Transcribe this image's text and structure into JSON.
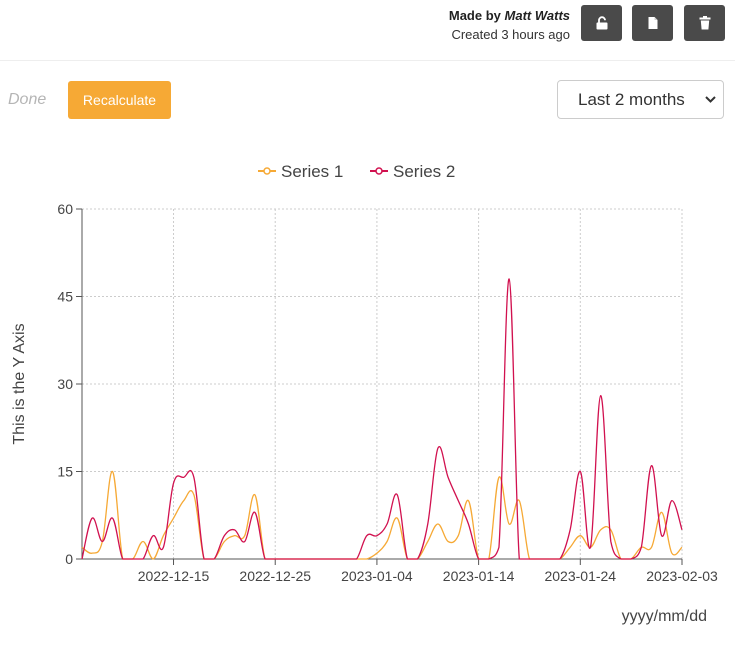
{
  "header": {
    "made_by_label": "Made by",
    "author_name": "Matt Watts",
    "created_text": "Created 3 hours ago",
    "buttons": [
      {
        "name": "unlock-button",
        "icon": "unlock-icon"
      },
      {
        "name": "copy-button",
        "icon": "copy-icon"
      },
      {
        "name": "delete-button",
        "icon": "trash-icon"
      }
    ]
  },
  "toolbar": {
    "status_text": "Done",
    "recalculate_label": "Recalculate",
    "range_selected": "Last 2 months"
  },
  "colors": {
    "series1": "#f6a935",
    "series2": "#d1114f",
    "recalculate_bg": "#f6a935",
    "icon_button_bg": "#4a4a4a"
  },
  "chart_data": {
    "type": "line",
    "ylabel": "This is the Y Axis",
    "xlabel": "yyyy/mm/dd",
    "ylim": [
      0,
      60
    ],
    "yticks": [
      0,
      15,
      30,
      45,
      60
    ],
    "xlim": [
      "2022-12-06",
      "2023-02-03"
    ],
    "xticks": [
      "2022-12-15",
      "2022-12-25",
      "2023-01-04",
      "2023-01-14",
      "2023-01-24",
      "2023-02-03"
    ],
    "grid": true,
    "legend_position": "top",
    "series": [
      {
        "name": "Series 1",
        "color": "#f6a935",
        "points": [
          [
            "2022-12-06",
            2
          ],
          [
            "2022-12-07",
            1
          ],
          [
            "2022-12-08",
            3
          ],
          [
            "2022-12-09",
            15
          ],
          [
            "2022-12-10",
            0
          ],
          [
            "2022-12-11",
            0
          ],
          [
            "2022-12-12",
            3
          ],
          [
            "2022-12-13",
            0
          ],
          [
            "2022-12-14",
            4
          ],
          [
            "2022-12-15",
            7
          ],
          [
            "2022-12-16",
            10
          ],
          [
            "2022-12-17",
            11
          ],
          [
            "2022-12-18",
            0
          ],
          [
            "2022-12-19",
            0
          ],
          [
            "2022-12-20",
            3
          ],
          [
            "2022-12-21",
            4
          ],
          [
            "2022-12-22",
            4
          ],
          [
            "2022-12-23",
            11
          ],
          [
            "2022-12-24",
            0
          ],
          [
            "2022-12-25",
            0
          ],
          [
            "2022-12-26",
            0
          ],
          [
            "2022-12-27",
            0
          ],
          [
            "2022-12-28",
            0
          ],
          [
            "2022-12-29",
            0
          ],
          [
            "2022-12-30",
            0
          ],
          [
            "2022-12-31",
            0
          ],
          [
            "2023-01-01",
            0
          ],
          [
            "2023-01-02",
            0
          ],
          [
            "2023-01-03",
            0
          ],
          [
            "2023-01-04",
            1
          ],
          [
            "2023-01-05",
            3
          ],
          [
            "2023-01-06",
            7
          ],
          [
            "2023-01-07",
            0
          ],
          [
            "2023-01-08",
            0
          ],
          [
            "2023-01-09",
            3
          ],
          [
            "2023-01-10",
            6
          ],
          [
            "2023-01-11",
            3
          ],
          [
            "2023-01-12",
            4
          ],
          [
            "2023-01-13",
            10
          ],
          [
            "2023-01-14",
            0
          ],
          [
            "2023-01-15",
            0
          ],
          [
            "2023-01-16",
            14
          ],
          [
            "2023-01-17",
            6
          ],
          [
            "2023-01-18",
            10
          ],
          [
            "2023-01-19",
            0
          ],
          [
            "2023-01-20",
            0
          ],
          [
            "2023-01-21",
            0
          ],
          [
            "2023-01-22",
            0
          ],
          [
            "2023-01-23",
            2
          ],
          [
            "2023-01-24",
            4
          ],
          [
            "2023-01-25",
            2
          ],
          [
            "2023-01-26",
            5
          ],
          [
            "2023-01-27",
            5
          ],
          [
            "2023-01-28",
            0
          ],
          [
            "2023-01-29",
            0
          ],
          [
            "2023-01-30",
            2
          ],
          [
            "2023-01-31",
            2
          ],
          [
            "2023-02-01",
            8
          ],
          [
            "2023-02-02",
            1
          ],
          [
            "2023-02-03",
            2
          ]
        ]
      },
      {
        "name": "Series 2",
        "color": "#d1114f",
        "points": [
          [
            "2022-12-06",
            0
          ],
          [
            "2022-12-07",
            7
          ],
          [
            "2022-12-08",
            3
          ],
          [
            "2022-12-09",
            7
          ],
          [
            "2022-12-10",
            0
          ],
          [
            "2022-12-11",
            0
          ],
          [
            "2022-12-12",
            0
          ],
          [
            "2022-12-13",
            4
          ],
          [
            "2022-12-14",
            2
          ],
          [
            "2022-12-15",
            13
          ],
          [
            "2022-12-16",
            14
          ],
          [
            "2022-12-17",
            14
          ],
          [
            "2022-12-18",
            0
          ],
          [
            "2022-12-19",
            0
          ],
          [
            "2022-12-20",
            4
          ],
          [
            "2022-12-21",
            5
          ],
          [
            "2022-12-22",
            3
          ],
          [
            "2022-12-23",
            8
          ],
          [
            "2022-12-24",
            0
          ],
          [
            "2022-12-25",
            0
          ],
          [
            "2022-12-26",
            0
          ],
          [
            "2022-12-27",
            0
          ],
          [
            "2022-12-28",
            0
          ],
          [
            "2022-12-29",
            0
          ],
          [
            "2022-12-30",
            0
          ],
          [
            "2022-12-31",
            0
          ],
          [
            "2023-01-01",
            0
          ],
          [
            "2023-01-02",
            0
          ],
          [
            "2023-01-03",
            4
          ],
          [
            "2023-01-04",
            4
          ],
          [
            "2023-01-05",
            6
          ],
          [
            "2023-01-06",
            11
          ],
          [
            "2023-01-07",
            0
          ],
          [
            "2023-01-08",
            0
          ],
          [
            "2023-01-09",
            6
          ],
          [
            "2023-01-10",
            19
          ],
          [
            "2023-01-11",
            14
          ],
          [
            "2023-01-12",
            10
          ],
          [
            "2023-01-13",
            6
          ],
          [
            "2023-01-14",
            0
          ],
          [
            "2023-01-15",
            0
          ],
          [
            "2023-01-16",
            2
          ],
          [
            "2023-01-17",
            48
          ],
          [
            "2023-01-18",
            0
          ],
          [
            "2023-01-19",
            0
          ],
          [
            "2023-01-20",
            0
          ],
          [
            "2023-01-21",
            0
          ],
          [
            "2023-01-22",
            0
          ],
          [
            "2023-01-23",
            5
          ],
          [
            "2023-01-24",
            15
          ],
          [
            "2023-01-25",
            2
          ],
          [
            "2023-01-26",
            28
          ],
          [
            "2023-01-27",
            3
          ],
          [
            "2023-01-28",
            0
          ],
          [
            "2023-01-29",
            0
          ],
          [
            "2023-01-30",
            2
          ],
          [
            "2023-01-31",
            16
          ],
          [
            "2023-02-01",
            4
          ],
          [
            "2023-02-02",
            10
          ],
          [
            "2023-02-03",
            5
          ]
        ]
      }
    ]
  }
}
